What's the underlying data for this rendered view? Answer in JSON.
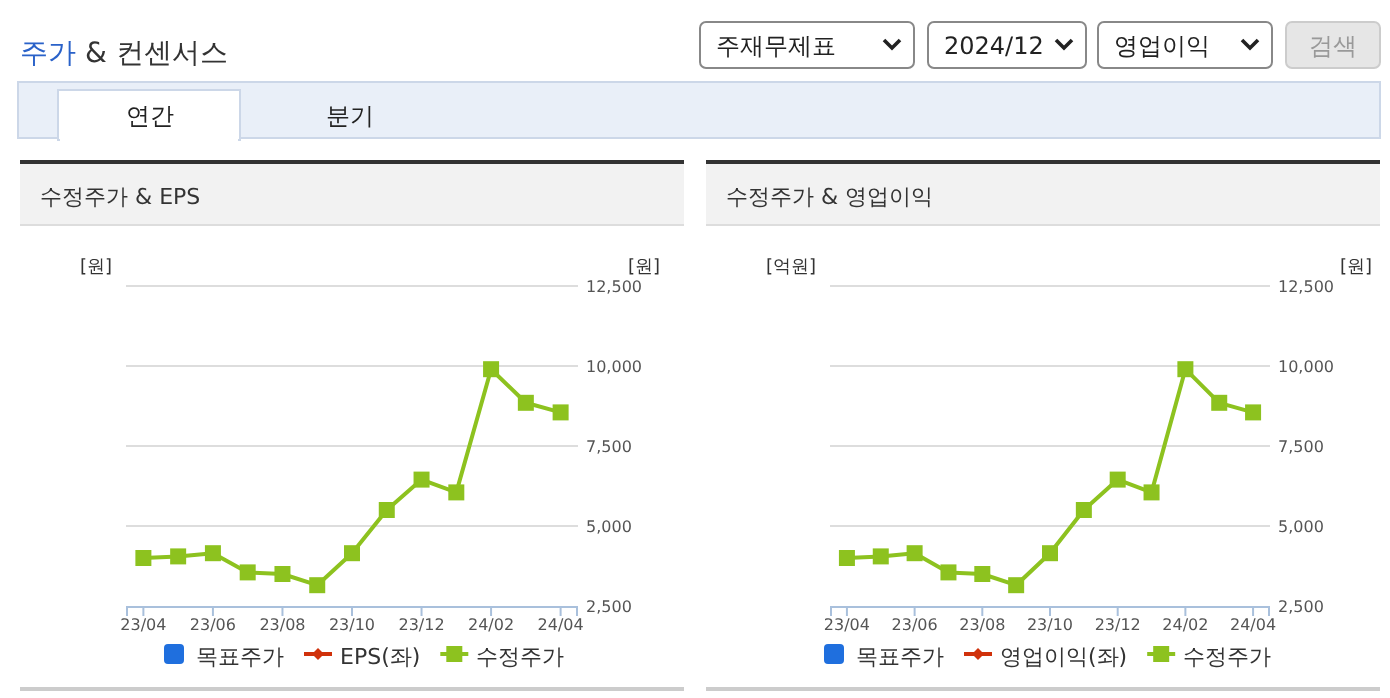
{
  "chart_data": [
    {
      "type": "line",
      "title": "수정주가 & EPS",
      "ylabel": "[원]",
      "y2label": "[원]",
      "annotations": [
        "주가 & 컨센서스",
        "주재무제표",
        "2024/12",
        "영업이익",
        "검색",
        "연간",
        "분기"
      ],
      "categories": [
        "23/04",
        null,
        "23/06",
        null,
        "23/08",
        null,
        "23/10",
        null,
        "23/12",
        null,
        "24/02",
        null,
        "24/04"
      ],
      "series": [
        {
          "name": "목표주가",
          "type": "bar",
          "color": "#1f6fde",
          "values": [
            null,
            null,
            null,
            null,
            null,
            null,
            null,
            null,
            null,
            null,
            null,
            null,
            null
          ]
        },
        {
          "name": "EPS(좌)",
          "type": "line",
          "marker": "diamond",
          "color": "#d0310b",
          "values": [
            null,
            null,
            null,
            null,
            null,
            null,
            null,
            null,
            null,
            null,
            null,
            null,
            null
          ]
        },
        {
          "name": "수정주가",
          "type": "line",
          "marker": "square",
          "axis": "y2",
          "color": "#8dc21f",
          "values": [
            4000,
            4050,
            4150,
            3550,
            3500,
            3150,
            4150,
            5500,
            6450,
            6050,
            9900,
            8850,
            8550
          ]
        }
      ],
      "y2lim": [
        2500,
        12500
      ],
      "y2ticks": [
        {
          "value": 2500,
          "label": "2,500"
        },
        {
          "value": 5000,
          "label": "5,000"
        },
        {
          "value": 7500,
          "label": "7,500"
        },
        {
          "value": 10000,
          "label": "10,000"
        },
        {
          "value": 12500,
          "label": "12,500"
        }
      ],
      "grid": "y",
      "legend": "bottom"
    },
    {
      "type": "line",
      "title": "수정주가 & 영업이익",
      "ylabel": "[억원]",
      "y2label": "[원]",
      "categories": [
        "23/04",
        null,
        "23/06",
        null,
        "23/08",
        null,
        "23/10",
        null,
        "23/12",
        null,
        "24/02",
        null,
        "24/04"
      ],
      "series": [
        {
          "name": "목표주가",
          "type": "bar",
          "color": "#1f6fde",
          "values": [
            null,
            null,
            null,
            null,
            null,
            null,
            null,
            null,
            null,
            null,
            null,
            null,
            null
          ]
        },
        {
          "name": "영업이익(좌)",
          "type": "line",
          "marker": "diamond",
          "color": "#d0310b",
          "values": [
            null,
            null,
            null,
            null,
            null,
            null,
            null,
            null,
            null,
            null,
            null,
            null,
            null
          ]
        },
        {
          "name": "수정주가",
          "type": "line",
          "marker": "square",
          "axis": "y2",
          "color": "#8dc21f",
          "values": [
            4000,
            4050,
            4150,
            3550,
            3500,
            3150,
            4150,
            5500,
            6450,
            6050,
            9900,
            8850,
            8550
          ]
        }
      ],
      "y2lim": [
        2500,
        12500
      ],
      "y2ticks": [
        {
          "value": 2500,
          "label": "2,500"
        },
        {
          "value": 5000,
          "label": "5,000"
        },
        {
          "value": 7500,
          "label": "7,500"
        },
        {
          "value": 10000,
          "label": "10,000"
        },
        {
          "value": 12500,
          "label": "12,500"
        }
      ],
      "grid": "y",
      "legend": "bottom"
    }
  ]
}
